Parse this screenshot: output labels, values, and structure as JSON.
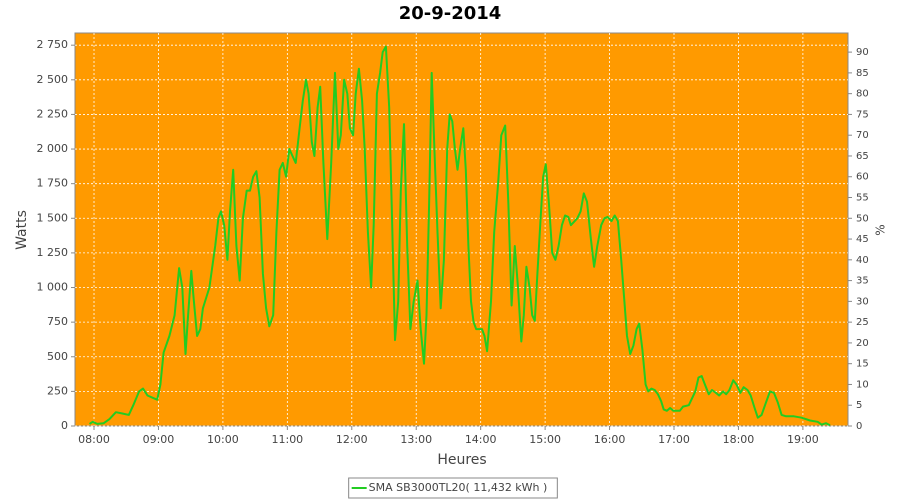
{
  "chart_data": {
    "type": "line",
    "title": "20-9-2014",
    "xlabel": "Heures",
    "ylabel": "Watts",
    "y2label": "%",
    "plot_color": "#ff9a00",
    "grid": true,
    "legend": "bottom",
    "x": [
      7.93,
      7.98,
      8.05,
      8.15,
      8.24,
      8.34,
      8.44,
      8.54,
      8.61,
      8.7,
      8.76,
      8.83,
      8.93,
      8.98,
      9.03,
      9.08,
      9.17,
      9.25,
      9.32,
      9.37,
      9.42,
      9.46,
      9.51,
      9.55,
      9.6,
      9.65,
      9.69,
      9.79,
      9.88,
      9.93,
      9.97,
      10.02,
      10.07,
      10.11,
      10.16,
      10.21,
      10.26,
      10.31,
      10.37,
      10.42,
      10.47,
      10.52,
      10.57,
      10.62,
      10.67,
      10.72,
      10.78,
      10.83,
      10.88,
      10.93,
      10.98,
      11.03,
      11.08,
      11.13,
      11.19,
      11.24,
      11.29,
      11.33,
      11.38,
      11.42,
      11.47,
      11.51,
      11.56,
      11.62,
      11.68,
      11.74,
      11.79,
      11.83,
      11.88,
      11.93,
      11.97,
      12.02,
      12.06,
      12.11,
      12.16,
      12.2,
      12.25,
      12.3,
      12.34,
      12.39,
      12.44,
      12.48,
      12.53,
      12.58,
      12.62,
      12.67,
      12.72,
      12.76,
      12.81,
      12.86,
      12.91,
      12.96,
      13.02,
      13.07,
      13.12,
      13.16,
      13.2,
      13.24,
      13.29,
      13.33,
      13.38,
      13.43,
      13.48,
      13.52,
      13.56,
      13.6,
      13.64,
      13.68,
      13.73,
      13.77,
      13.81,
      13.85,
      13.89,
      13.93,
      14.02,
      14.06,
      14.1,
      14.16,
      14.21,
      14.27,
      14.32,
      14.38,
      14.43,
      14.48,
      14.53,
      14.58,
      14.63,
      14.67,
      14.71,
      14.76,
      14.8,
      14.84,
      14.88,
      14.93,
      14.97,
      15.01,
      15.06,
      15.11,
      15.16,
      15.21,
      15.26,
      15.31,
      15.36,
      15.4,
      15.5,
      15.55,
      15.6,
      15.65,
      15.71,
      15.76,
      15.81,
      15.87,
      15.92,
      15.97,
      16.03,
      16.08,
      16.13,
      16.18,
      16.23,
      16.27,
      16.32,
      16.37,
      16.42,
      16.46,
      16.51,
      16.56,
      16.6,
      16.65,
      16.7,
      16.75,
      16.8,
      16.84,
      16.89,
      16.94,
      16.99,
      17.09,
      17.14,
      17.23,
      17.33,
      17.38,
      17.43,
      17.48,
      17.54,
      17.59,
      17.65,
      17.7,
      17.76,
      17.81,
      17.86,
      17.92,
      17.97,
      18.03,
      18.08,
      18.14,
      18.19,
      18.25,
      18.3,
      18.36,
      18.42,
      18.49,
      18.55,
      18.61,
      18.67,
      18.74,
      18.86,
      18.98,
      19.11,
      19.23,
      19.29,
      19.36,
      19.42
    ],
    "series": [
      {
        "name": "SMA SB3000TL20( 11,432 kWh )",
        "color": "#22cc22",
        "values": [
          15,
          30,
          15,
          20,
          50,
          100,
          90,
          80,
          150,
          250,
          270,
          220,
          200,
          190,
          300,
          530,
          650,
          800,
          1140,
          1000,
          520,
          800,
          1120,
          900,
          650,
          700,
          850,
          1000,
          1300,
          1500,
          1550,
          1450,
          1200,
          1550,
          1850,
          1300,
          1050,
          1500,
          1700,
          1700,
          1800,
          1840,
          1650,
          1100,
          850,
          720,
          800,
          1400,
          1850,
          1900,
          1800,
          2000,
          1950,
          1900,
          2150,
          2350,
          2500,
          2400,
          2050,
          1950,
          2300,
          2450,
          1900,
          1350,
          1900,
          2550,
          2000,
          2100,
          2500,
          2400,
          2150,
          2100,
          2400,
          2580,
          2350,
          2000,
          1400,
          1000,
          1450,
          2400,
          2550,
          2700,
          2740,
          2300,
          1600,
          620,
          900,
          1700,
          2180,
          1300,
          700,
          900,
          1050,
          700,
          450,
          800,
          1600,
          2550,
          1900,
          1400,
          850,
          1200,
          2000,
          2250,
          2200,
          2000,
          1850,
          2000,
          2150,
          1850,
          1300,
          900,
          750,
          700,
          700,
          650,
          540,
          900,
          1400,
          1750,
          2100,
          2170,
          1600,
          870,
          1300,
          1000,
          610,
          800,
          1150,
          1000,
          800,
          760,
          1100,
          1500,
          1800,
          1890,
          1600,
          1250,
          1200,
          1300,
          1450,
          1520,
          1510,
          1450,
          1500,
          1550,
          1680,
          1620,
          1350,
          1150,
          1300,
          1450,
          1500,
          1510,
          1480,
          1520,
          1480,
          1200,
          900,
          650,
          520,
          580,
          700,
          740,
          550,
          300,
          250,
          270,
          260,
          230,
          180,
          120,
          110,
          130,
          110,
          110,
          140,
          150,
          250,
          350,
          360,
          300,
          230,
          260,
          240,
          220,
          250,
          230,
          260,
          330,
          300,
          240,
          280,
          260,
          220,
          130,
          60,
          80,
          160,
          250,
          240,
          170,
          80,
          70,
          70,
          60,
          40,
          30,
          10,
          20,
          5
        ]
      }
    ],
    "xlim": [
      7.705,
      19.7
    ],
    "xticks": [
      {
        "value": 8,
        "label": "08:00"
      },
      {
        "value": 9,
        "label": "09:00"
      },
      {
        "value": 10,
        "label": "10:00"
      },
      {
        "value": 11,
        "label": "11:00"
      },
      {
        "value": 12,
        "label": "12:00"
      },
      {
        "value": 13,
        "label": "13:00"
      },
      {
        "value": 14,
        "label": "14:00"
      },
      {
        "value": 15,
        "label": "15:00"
      },
      {
        "value": 16,
        "label": "16:00"
      },
      {
        "value": 17,
        "label": "17:00"
      },
      {
        "value": 18,
        "label": "18:00"
      },
      {
        "value": 19,
        "label": "19:00"
      }
    ],
    "ylim": [
      0,
      2838
    ],
    "yticks": [
      0,
      250,
      500,
      750,
      {
        "value": 1000,
        "label": "1 000"
      },
      {
        "value": 1250,
        "label": "1 250"
      },
      {
        "value": 1500,
        "label": "1 500"
      },
      {
        "value": 1750,
        "label": "1 750"
      },
      {
        "value": 2000,
        "label": "2 000"
      },
      {
        "value": 2250,
        "label": "2 250"
      },
      {
        "value": 2500,
        "label": "2 500"
      },
      {
        "value": 2750,
        "label": "2 750"
      }
    ],
    "y2lim": [
      0,
      94.6
    ],
    "y2ticks": [
      0,
      5,
      10,
      15,
      20,
      25,
      30,
      35,
      40,
      45,
      50,
      55,
      60,
      65,
      70,
      75,
      80,
      85,
      90
    ]
  }
}
